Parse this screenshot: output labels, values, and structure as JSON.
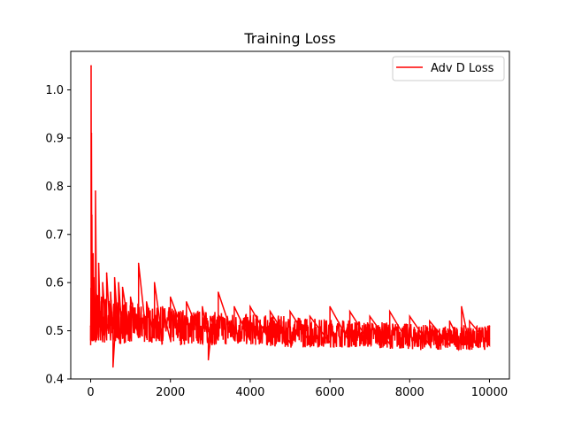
{
  "chart_data": {
    "type": "line",
    "title": "Training Loss",
    "xlabel": "",
    "ylabel": "",
    "xlim": [
      -500,
      10500
    ],
    "ylim": [
      0.4,
      1.08
    ],
    "x_ticks": [
      0,
      2000,
      4000,
      6000,
      8000,
      10000
    ],
    "x_tick_labels": [
      "0",
      "2000",
      "4000",
      "6000",
      "8000",
      "10000"
    ],
    "y_ticks": [
      0.4,
      0.5,
      0.6,
      0.7,
      0.8,
      0.9,
      1.0
    ],
    "y_tick_labels": [
      "0.4",
      "0.5",
      "0.6",
      "0.7",
      "0.8",
      "0.9",
      "1.0"
    ],
    "grid": false,
    "legend": "top-right",
    "series": [
      {
        "name": "Adv D Loss",
        "color": "#ff0000",
        "x": [
          0,
          10,
          20,
          30,
          40,
          60,
          80,
          100,
          120,
          150,
          200,
          250,
          300,
          400,
          500,
          560,
          600,
          700,
          800,
          1000,
          1200,
          1400,
          1600,
          1800,
          2000,
          2400,
          2800,
          2950,
          3000,
          3200,
          3600,
          4000,
          4500,
          5000,
          5500,
          6000,
          6500,
          7000,
          7500,
          8000,
          8500,
          9000,
          9300,
          9500,
          10000
        ],
        "y": [
          0.51,
          1.05,
          0.91,
          0.74,
          0.48,
          0.66,
          0.61,
          0.52,
          0.79,
          0.57,
          0.64,
          0.54,
          0.6,
          0.62,
          0.58,
          0.425,
          0.61,
          0.6,
          0.59,
          0.57,
          0.64,
          0.56,
          0.6,
          0.55,
          0.57,
          0.56,
          0.55,
          0.44,
          0.53,
          0.58,
          0.55,
          0.55,
          0.54,
          0.54,
          0.53,
          0.55,
          0.54,
          0.53,
          0.54,
          0.53,
          0.52,
          0.52,
          0.55,
          0.52,
          0.51
        ],
        "envelope": {
          "x": [
            0,
            200,
            500,
            1000,
            1500,
            2000,
            3000,
            4000,
            5000,
            6000,
            7000,
            8000,
            9000,
            10000
          ],
          "upper": [
            0.6,
            0.58,
            0.57,
            0.56,
            0.55,
            0.55,
            0.54,
            0.535,
            0.53,
            0.525,
            0.52,
            0.515,
            0.51,
            0.51
          ],
          "lower": [
            0.47,
            0.47,
            0.47,
            0.475,
            0.475,
            0.47,
            0.47,
            0.47,
            0.465,
            0.465,
            0.465,
            0.46,
            0.46,
            0.46
          ]
        }
      }
    ]
  }
}
